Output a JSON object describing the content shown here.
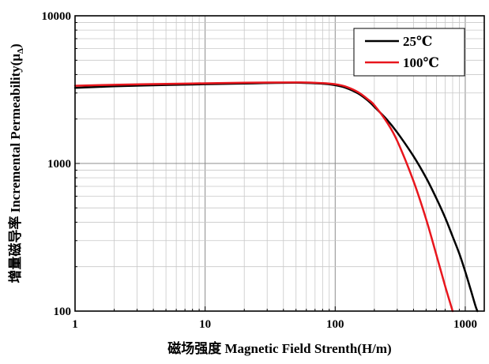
{
  "chart_data": {
    "type": "line",
    "title": "",
    "xlabel": "磁场强度 Magnetic Field Strenth(H/m)",
    "ylabel_main": "增量磁导率 Incremental Permeability(μ",
    "ylabel_subscript": "Δ",
    "ylabel_close": ")",
    "x_scale": "log",
    "y_scale": "log",
    "xlim": [
      1,
      1400
    ],
    "ylim": [
      100,
      10000
    ],
    "x_ticks": [
      {
        "value": 1,
        "label": "1"
      },
      {
        "value": 10,
        "label": "10"
      },
      {
        "value": 100,
        "label": "100"
      },
      {
        "value": 1000,
        "label": "1000"
      }
    ],
    "y_ticks": [
      {
        "value": 100,
        "label": "100"
      },
      {
        "value": 1000,
        "label": "1000"
      },
      {
        "value": 10000,
        "label": "10000"
      }
    ],
    "grid": true,
    "legend_position": "top-right",
    "series": [
      {
        "name": "25℃",
        "color": "#000000",
        "points": [
          [
            1,
            3250
          ],
          [
            2,
            3330
          ],
          [
            5,
            3400
          ],
          [
            10,
            3440
          ],
          [
            20,
            3480
          ],
          [
            50,
            3520
          ],
          [
            80,
            3470
          ],
          [
            100,
            3390
          ],
          [
            120,
            3260
          ],
          [
            150,
            2980
          ],
          [
            180,
            2650
          ],
          [
            200,
            2420
          ],
          [
            250,
            1980
          ],
          [
            300,
            1620
          ],
          [
            400,
            1120
          ],
          [
            500,
            800
          ],
          [
            600,
            580
          ],
          [
            700,
            430
          ],
          [
            800,
            320
          ],
          [
            900,
            245
          ],
          [
            1000,
            185
          ],
          [
            1100,
            140
          ],
          [
            1200,
            108
          ],
          [
            1240,
            100
          ]
        ]
      },
      {
        "name": "100℃",
        "color": "#e8161d",
        "points": [
          [
            1,
            3360
          ],
          [
            2,
            3410
          ],
          [
            5,
            3460
          ],
          [
            10,
            3490
          ],
          [
            20,
            3520
          ],
          [
            50,
            3540
          ],
          [
            80,
            3500
          ],
          [
            100,
            3440
          ],
          [
            120,
            3320
          ],
          [
            150,
            3040
          ],
          [
            180,
            2700
          ],
          [
            200,
            2480
          ],
          [
            250,
            1900
          ],
          [
            300,
            1420
          ],
          [
            400,
            760
          ],
          [
            500,
            420
          ],
          [
            600,
            240
          ],
          [
            700,
            148
          ],
          [
            800,
            100
          ]
        ]
      }
    ]
  }
}
